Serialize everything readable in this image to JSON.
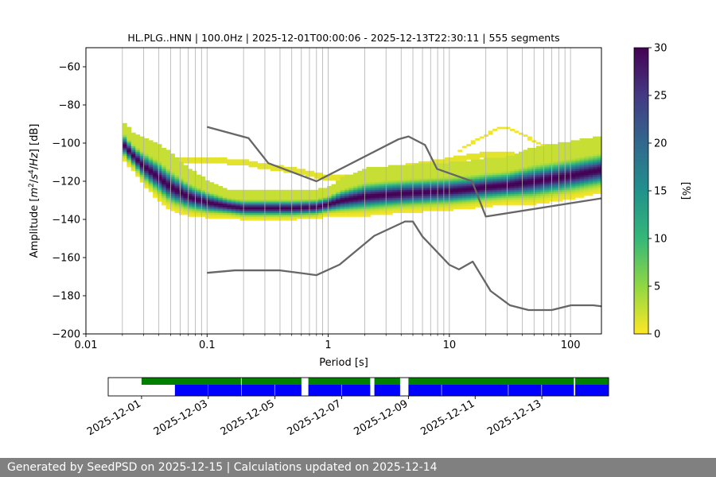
{
  "chart_data": {
    "type": "heatmap",
    "title": "HL.PLG..HNN | 100.0Hz | 2025-12-01T00:00:06 - 2025-12-13T22:30:11 | 555 segments",
    "xlabel": "Period [s]",
    "ylabel_parts": [
      "Amplitude [",
      "m",
      "2",
      "/",
      "s",
      "4",
      "/",
      "Hz",
      "] [dB]"
    ],
    "x_scale": "log",
    "xlim": [
      0.01,
      180
    ],
    "ylim": [
      -200,
      -50
    ],
    "x_ticks": [
      0.01,
      0.1,
      1,
      10,
      100
    ],
    "x_tick_labels": [
      "0.01",
      "0.1",
      "1",
      "10",
      "100"
    ],
    "y_ticks": [
      -200,
      -180,
      -160,
      -140,
      -120,
      -100,
      -80,
      -60
    ],
    "y_tick_labels": [
      "−200",
      "−180",
      "−160",
      "−140",
      "−120",
      "−100",
      "−80",
      "−60"
    ],
    "colorbar": {
      "label": "[%]",
      "range": [
        0,
        30
      ],
      "ticks": [
        0,
        5,
        10,
        15,
        20,
        25,
        30
      ],
      "tick_labels": [
        "0",
        "5",
        "10",
        "15",
        "20",
        "25",
        "30"
      ],
      "colormap": [
        "#fde725",
        "#90d743",
        "#35b779",
        "#21918c",
        "#31688e",
        "#443983",
        "#440154"
      ]
    },
    "nhnm": {
      "name": "NHNM",
      "period": [
        0.1,
        0.22,
        0.32,
        0.8,
        3.8,
        4.6,
        6.3,
        7.9,
        15.4,
        20,
        354.8
      ],
      "db": [
        -91.5,
        -97.4,
        -110.5,
        -120,
        -98,
        -96.5,
        -101,
        -113.5,
        -120,
        -138.5,
        -126
      ]
    },
    "nlnm": {
      "name": "NLNM",
      "period": [
        0.1,
        0.17,
        0.4,
        0.8,
        1.24,
        2.4,
        4.3,
        5,
        6,
        10,
        12,
        15.6,
        21.9,
        31.6,
        45,
        70,
        101,
        154,
        328
      ],
      "db": [
        -168,
        -166.7,
        -166.7,
        -169.2,
        -163.7,
        -148.6,
        -141.1,
        -141.1,
        -149,
        -163.8,
        -166.2,
        -162.1,
        -177.5,
        -185,
        -187.5,
        -187.5,
        -185,
        -185,
        -187.5
      ]
    },
    "ppsd_mode": {
      "name": "mode",
      "period": [
        0.02,
        0.025,
        0.03,
        0.04,
        0.05,
        0.07,
        0.1,
        0.15,
        0.2,
        0.3,
        0.5,
        0.8,
        1.0,
        1.3,
        2.0,
        3.0,
        5.0,
        7.0,
        10,
        15,
        20,
        30,
        50,
        100,
        180
      ],
      "db": [
        -100,
        -107,
        -112,
        -118,
        -123,
        -128,
        -131,
        -133,
        -134,
        -134,
        -134,
        -133.5,
        -132,
        -130,
        -128,
        -127,
        -126,
        -125.5,
        -125,
        -124,
        -123,
        -122,
        -120,
        -117,
        -114
      ]
    },
    "ppsd_spread_db": [
      4,
      4,
      5,
      6,
      6,
      5,
      4,
      3,
      3,
      3,
      3,
      3,
      3,
      4,
      5,
      5,
      5,
      5,
      5,
      5,
      5,
      5,
      6,
      6,
      6
    ],
    "ppsd_secondary": {
      "period": [
        0.05,
        0.1,
        0.2,
        0.3,
        0.5,
        1.0,
        2.0,
        3.0,
        5.0,
        8.0,
        12,
        20,
        30,
        50,
        100,
        180
      ],
      "db": [
        -109,
        -109,
        -110,
        -112,
        -114,
        -118,
        -118,
        -114,
        -112,
        -110,
        -108,
        -106,
        -106,
        -108,
        -107,
        -106
      ]
    },
    "ppsd_arc": {
      "period": [
        12,
        15,
        20,
        25,
        30,
        40,
        50,
        70
      ],
      "db": [
        -104,
        -100,
        -96,
        -92,
        -92,
        -95,
        -99,
        -104
      ]
    }
  },
  "coverage": {
    "x_start": "2025-11-30",
    "x_end": "2025-12-15",
    "date_ticks": [
      "2025-12-01",
      "2025-12-03",
      "2025-12-05",
      "2025-12-07",
      "2025-12-09",
      "2025-12-11",
      "2025-12-13"
    ],
    "green_color": "#008000",
    "blue_color": "#0000ff",
    "green_segments": [
      [
        "2025-12-01T00:00",
        "2025-12-03T23:30"
      ],
      [
        "2025-12-04T00:00",
        "2025-12-05T19:00"
      ],
      [
        "2025-12-06T00:00",
        "2025-12-07T20:30"
      ],
      [
        "2025-12-07T23:30",
        "2025-12-08T18:00"
      ],
      [
        "2025-12-09T00:00",
        "2025-12-13T23:00"
      ],
      [
        "2025-12-14T00:00",
        "2025-12-15T00:00"
      ]
    ],
    "blue_segments": [
      [
        "2025-12-02T00:00",
        "2025-12-02T23:50"
      ],
      [
        "2025-12-03T00:00",
        "2025-12-03T23:40"
      ],
      [
        "2025-12-04T00:00",
        "2025-12-04T23:40"
      ],
      [
        "2025-12-05T00:00",
        "2025-12-05T19:00"
      ],
      [
        "2025-12-06T00:00",
        "2025-12-06T23:40"
      ],
      [
        "2025-12-07T00:00",
        "2025-12-07T20:30"
      ],
      [
        "2025-12-07T23:30",
        "2025-12-08T18:00"
      ],
      [
        "2025-12-09T00:00",
        "2025-12-09T23:40"
      ],
      [
        "2025-12-10T00:00",
        "2025-12-11T23:40"
      ],
      [
        "2025-12-12T00:00",
        "2025-12-12T23:40"
      ],
      [
        "2025-12-13T00:00",
        "2025-12-13T23:00"
      ],
      [
        "2025-12-14T00:00",
        "2025-12-15T00:00"
      ]
    ]
  },
  "footer": "Generated by SeedPSD on 2025-12-15 | Calculations updated on 2025-12-14"
}
